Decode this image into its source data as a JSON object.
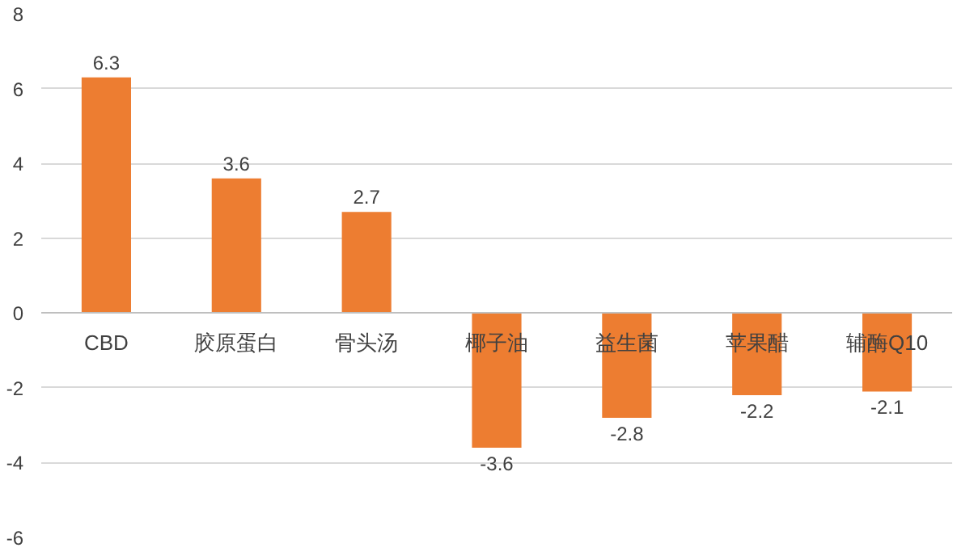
{
  "chart_data": {
    "type": "bar",
    "categories": [
      "CBD",
      "胶原蛋白",
      "骨头汤",
      "椰子油",
      "益生菌",
      "苹果醋",
      "辅酶Q10"
    ],
    "values": [
      6.3,
      3.6,
      2.7,
      -3.6,
      -2.8,
      -2.2,
      -2.1
    ],
    "color": "#ed7d31",
    "ylim": [
      -6,
      8
    ],
    "yticks": [
      -6,
      -4,
      -2,
      0,
      2,
      4,
      6,
      8
    ],
    "grid": "y",
    "data_labels": true
  }
}
